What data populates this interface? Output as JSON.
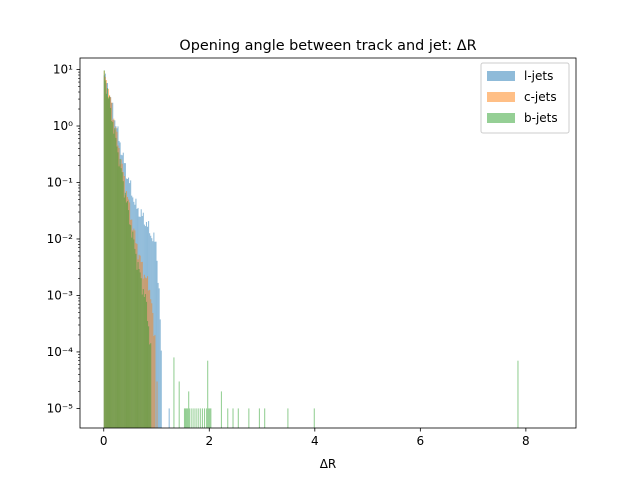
{
  "chart_data": {
    "type": "histogram",
    "title": "Opening angle between track and jet: ΔR",
    "xlabel": "ΔR",
    "ylabel": "",
    "xlim": [
      -0.45,
      8.95
    ],
    "ylim": [
      4.5e-06,
      16
    ],
    "yscale": "log",
    "x_ticks": [
      0,
      2,
      4,
      6,
      8
    ],
    "x_tick_labels": [
      "0",
      "2",
      "4",
      "6",
      "8"
    ],
    "y_ticks": [
      1e-05,
      0.0001,
      0.001,
      0.01,
      0.1,
      1,
      10
    ],
    "y_tick_labels": [
      "10⁻⁵",
      "10⁻⁴",
      "10⁻³",
      "10⁻²",
      "10⁻¹",
      "10⁰",
      "10¹"
    ],
    "legend": {
      "position": "top-right",
      "entries": [
        "l-jets",
        "c-jets",
        "b-jets"
      ]
    },
    "series": [
      {
        "name": "l-jets",
        "color": "#1f77b4",
        "alpha": 0.5,
        "bin_width": 0.02,
        "profile_x": [
          0.0,
          0.1,
          0.2,
          0.4,
          0.6,
          0.8,
          0.9,
          1.0,
          1.02,
          1.06,
          1.1
        ],
        "profile_y": [
          8.5,
          4.0,
          1.5,
          0.2,
          0.04,
          0.02,
          0.012,
          0.008,
          0.003,
          0.0008,
          4e-05
        ],
        "tail": [
          [
            1.23,
            1e-05
          ]
        ]
      },
      {
        "name": "c-jets",
        "color": "#ff7f0e",
        "alpha": 0.5,
        "bin_width": 0.02,
        "profile_x": [
          0.0,
          0.1,
          0.2,
          0.4,
          0.6,
          0.7,
          0.8,
          0.85,
          0.9,
          0.95
        ],
        "profile_y": [
          9.0,
          4.0,
          1.2,
          0.1,
          0.01,
          0.004,
          0.002,
          0.0015,
          0.001,
          0.0002
        ],
        "tail": [
          [
            0.96,
            0.0002
          ],
          [
            1.0,
            3e-05
          ]
        ]
      },
      {
        "name": "b-jets",
        "color": "#2ca02c",
        "alpha": 0.5,
        "bin_width": 0.02,
        "profile_x": [
          0.0,
          0.1,
          0.2,
          0.3,
          0.4,
          0.5,
          0.6,
          0.7,
          0.8,
          0.9
        ],
        "profile_y": [
          9.5,
          3.0,
          0.8,
          0.25,
          0.07,
          0.02,
          0.006,
          0.002,
          0.0008,
          0.0001
        ],
        "tail": [
          [
            1.32,
            8e-05
          ],
          [
            1.42,
            3e-05
          ],
          [
            1.52,
            1e-05
          ],
          [
            1.54,
            1e-05
          ],
          [
            1.56,
            1e-05
          ],
          [
            1.58,
            1e-05
          ],
          [
            1.6,
            2e-05
          ],
          [
            1.62,
            1e-05
          ],
          [
            1.66,
            1e-05
          ],
          [
            1.7,
            1e-05
          ],
          [
            1.74,
            1e-05
          ],
          [
            1.78,
            1e-05
          ],
          [
            1.82,
            1e-05
          ],
          [
            1.86,
            1e-05
          ],
          [
            1.9,
            1e-05
          ],
          [
            1.94,
            1e-05
          ],
          [
            1.96,
            7e-05
          ],
          [
            1.98,
            1e-05
          ],
          [
            2.0,
            1e-05
          ],
          [
            2.02,
            1e-05
          ],
          [
            2.22,
            2e-05
          ],
          [
            2.34,
            1e-05
          ],
          [
            2.44,
            1e-05
          ],
          [
            2.54,
            1e-05
          ],
          [
            2.74,
            1e-05
          ],
          [
            2.94,
            1e-05
          ],
          [
            3.04,
            1e-05
          ],
          [
            3.48,
            1e-05
          ],
          [
            3.98,
            1e-05
          ],
          [
            7.84,
            7e-05
          ]
        ]
      }
    ]
  }
}
